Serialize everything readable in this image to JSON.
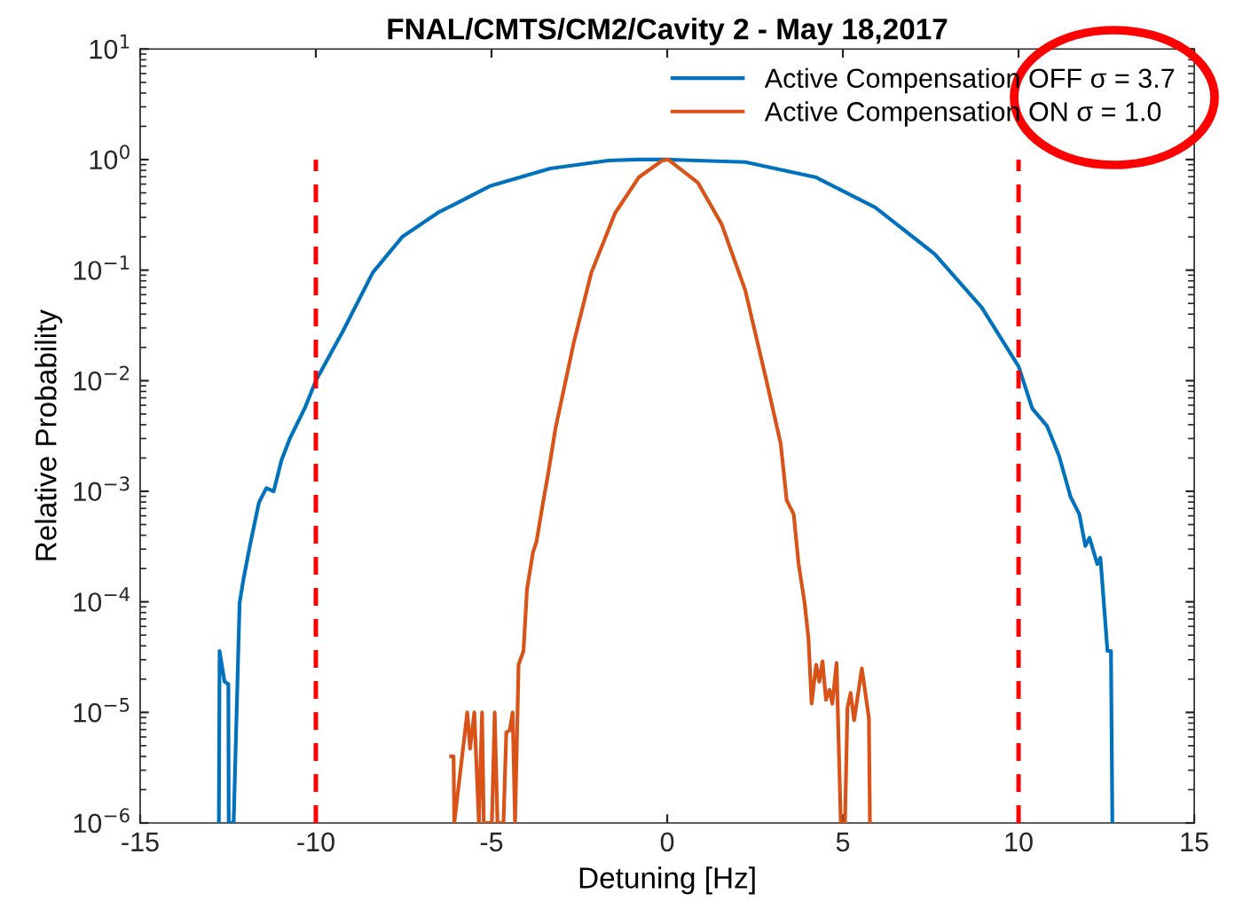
{
  "chart_data": {
    "type": "line",
    "title": "FNAL/CMTS/CM2/Cavity 2 - May 18,2017",
    "xlabel": "Detuning [Hz]",
    "ylabel": "Relative Probability",
    "log": "y",
    "xlim": [
      -15,
      15
    ],
    "xticks": [
      -15,
      -10,
      -5,
      0,
      5,
      10,
      15
    ],
    "ylim": [
      1e-06,
      10
    ],
    "yticks": [
      {
        "value": 1e-06,
        "label": "10$^{−6}$"
      },
      {
        "value": 1e-05,
        "label": "10$^{−5}$"
      },
      {
        "value": 0.0001,
        "label": "10$^{−4}$"
      },
      {
        "value": 0.001,
        "label": "10$^{−3}$"
      },
      {
        "value": 0.01,
        "label": "10$^{−2}$"
      },
      {
        "value": 0.1,
        "label": "10$^{−1}$"
      },
      {
        "value": 1,
        "label": "10$^{0}$"
      },
      {
        "value": 10,
        "label": "10$^{1}$"
      }
    ],
    "grid": false,
    "legend": "top right",
    "marker": "none",
    "line_style": "solid",
    "series": [
      {
        "name": "Active Compensation OFF σ = 3.7",
        "color": "#0072bd",
        "x": [
          -12.76,
          -12.74,
          -12.6,
          -12.49,
          -12.48,
          -12.34,
          -12.17,
          -12.06,
          -11.87,
          -11.62,
          -11.41,
          -11.2,
          -10.98,
          -10.74,
          -10.32,
          -10.0,
          -9.23,
          -8.38,
          -7.54,
          -6.53,
          -5.02,
          -3.33,
          -1.67,
          -0.83,
          0.03,
          2.22,
          4.24,
          5.92,
          7.61,
          8.95,
          10.0,
          10.39,
          10.81,
          11.15,
          11.48,
          11.73,
          11.9,
          12.02,
          12.24,
          12.33,
          12.53,
          12.63,
          12.67
        ],
        "values": [
          1e-06,
          3.6e-05,
          1.9e-05,
          1.8e-05,
          1e-06,
          1e-06,
          9.8e-05,
          0.00016,
          0.00033,
          0.00079,
          0.00107,
          0.001,
          0.0019,
          0.003,
          0.0056,
          0.01,
          0.028,
          0.095,
          0.2,
          0.33,
          0.58,
          0.83,
          0.98,
          1.0,
          1.0,
          0.95,
          0.69,
          0.37,
          0.14,
          0.046,
          0.0135,
          0.0056,
          0.0039,
          0.0021,
          0.00089,
          0.00062,
          0.00032,
          0.00038,
          0.00022,
          0.00025,
          3.6e-05,
          3.6e-05,
          1e-06
        ]
      },
      {
        "name": "Active Compensation ON σ = 1.0",
        "color": "#d95319",
        "x": [
          -6.15,
          -6.08,
          -6.06,
          -5.69,
          -5.61,
          -5.49,
          -5.36,
          -5.27,
          -5.22,
          -4.99,
          -4.91,
          -4.83,
          -4.66,
          -4.58,
          -4.48,
          -4.4,
          -4.33,
          -4.23,
          -4.09,
          -3.99,
          -3.82,
          -3.72,
          -3.55,
          -3.38,
          -3.18,
          -2.66,
          -2.16,
          -1.48,
          -0.81,
          -0.14,
          0.03,
          0.87,
          1.55,
          2.22,
          2.81,
          3.23,
          3.4,
          3.6,
          3.74,
          3.91,
          4.02,
          4.11,
          4.24,
          4.33,
          4.42,
          4.52,
          4.62,
          4.7,
          4.82,
          4.94,
          5.06,
          5.13,
          5.22,
          5.32,
          5.54,
          5.74,
          5.77
        ],
        "values": [
          4e-06,
          4e-06,
          1e-06,
          1e-05,
          4.7e-06,
          1e-05,
          1e-06,
          1e-05,
          1e-06,
          1e-06,
          1e-05,
          1e-06,
          1e-06,
          6.6e-06,
          6.9e-06,
          1e-05,
          1e-06,
          2.7e-05,
          3.6e-05,
          0.00013,
          0.00028,
          0.00035,
          0.00074,
          0.0015,
          0.0037,
          0.022,
          0.095,
          0.33,
          0.69,
          0.98,
          1.0,
          0.62,
          0.26,
          0.066,
          0.0105,
          0.0027,
          0.00083,
          0.00062,
          0.00022,
          9.8e-05,
          4.7e-05,
          1.2e-05,
          2.7e-05,
          1.9e-05,
          2.9e-05,
          1.3e-05,
          1.6e-05,
          1.2e-05,
          2.8e-05,
          1e-06,
          1e-06,
          1.1e-05,
          1.5e-05,
          8.5e-06,
          2.5e-05,
          8.9e-06,
          1e-06
        ]
      }
    ],
    "ref_lines": [
      {
        "axis": "x",
        "value": -10,
        "color": "#ff0000",
        "line_style": "dashed"
      },
      {
        "axis": "x",
        "value": 10,
        "color": "#ff0000",
        "line_style": "dashed"
      }
    ]
  }
}
